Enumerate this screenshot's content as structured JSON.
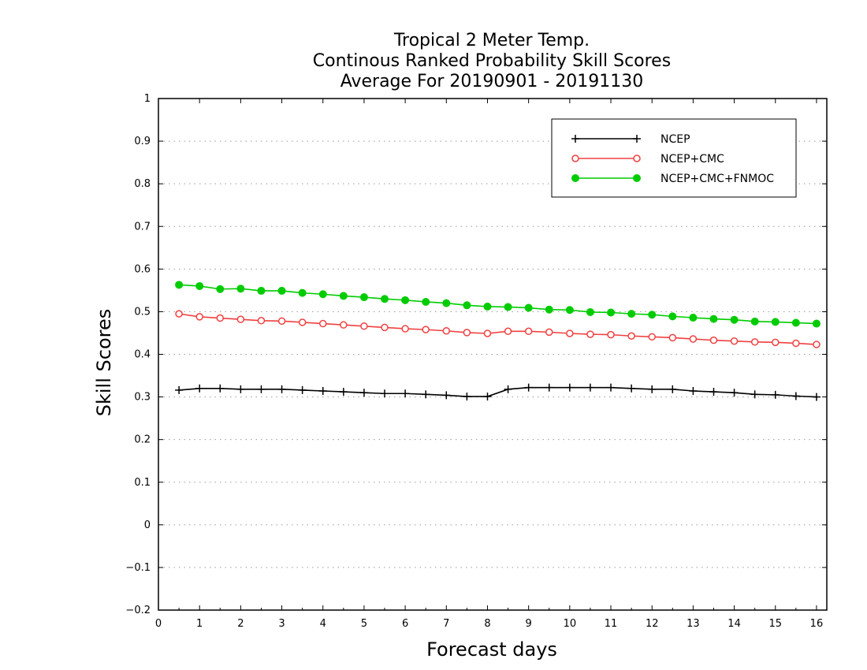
{
  "chart_data": {
    "type": "line",
    "title": [
      "Tropical 2 Meter Temp.",
      "Continous Ranked Probability Skill Scores",
      "Average For 20190901 - 20191130"
    ],
    "xlabel": "Forecast days",
    "ylabel": "Skill Scores",
    "xlim": [
      0,
      16.25
    ],
    "ylim": [
      -0.2,
      1
    ],
    "xticks": [
      "0",
      "1",
      "2",
      "3",
      "4",
      "5",
      "6",
      "7",
      "8",
      "9",
      "10",
      "11",
      "12",
      "13",
      "14",
      "15",
      "16"
    ],
    "yticks": [
      "−0.2",
      "−0.1",
      "0",
      "0.1",
      "0.2",
      "0.3",
      "0.4",
      "0.5",
      "0.6",
      "0.7",
      "0.8",
      "0.9",
      "1"
    ],
    "grid": "horizontal dotted",
    "legend_position": "top-right",
    "x": [
      0.5,
      1,
      1.5,
      2,
      2.5,
      3,
      3.5,
      4,
      4.5,
      5,
      5.5,
      6,
      6.5,
      7,
      7.5,
      8,
      8.5,
      9,
      9.5,
      10,
      10.5,
      11,
      11.5,
      12,
      12.5,
      13,
      13.5,
      14,
      14.5,
      15,
      15.5,
      16
    ],
    "series": [
      {
        "name": "NCEP",
        "color": "#000000",
        "marker": "plus",
        "values": [
          0.316,
          0.32,
          0.32,
          0.318,
          0.318,
          0.318,
          0.316,
          0.314,
          0.312,
          0.31,
          0.308,
          0.308,
          0.306,
          0.304,
          0.301,
          0.301,
          0.318,
          0.322,
          0.322,
          0.322,
          0.322,
          0.322,
          0.32,
          0.318,
          0.318,
          0.314,
          0.312,
          0.31,
          0.306,
          0.305,
          0.302,
          0.3
        ]
      },
      {
        "name": "NCEP+CMC",
        "color": "#f04040",
        "marker": "open-circle",
        "values": [
          0.495,
          0.488,
          0.485,
          0.482,
          0.479,
          0.478,
          0.475,
          0.472,
          0.469,
          0.466,
          0.463,
          0.46,
          0.458,
          0.455,
          0.451,
          0.449,
          0.454,
          0.454,
          0.452,
          0.449,
          0.447,
          0.446,
          0.443,
          0.441,
          0.439,
          0.436,
          0.433,
          0.431,
          0.429,
          0.428,
          0.426,
          0.423
        ]
      },
      {
        "name": "NCEP+CMC+FNMOC",
        "color": "#00cc00",
        "marker": "filled-circle",
        "values": [
          0.563,
          0.56,
          0.553,
          0.554,
          0.549,
          0.549,
          0.544,
          0.541,
          0.537,
          0.534,
          0.53,
          0.527,
          0.523,
          0.52,
          0.515,
          0.512,
          0.511,
          0.509,
          0.505,
          0.504,
          0.499,
          0.498,
          0.495,
          0.493,
          0.489,
          0.486,
          0.483,
          0.481,
          0.477,
          0.476,
          0.474,
          0.472
        ]
      }
    ]
  }
}
